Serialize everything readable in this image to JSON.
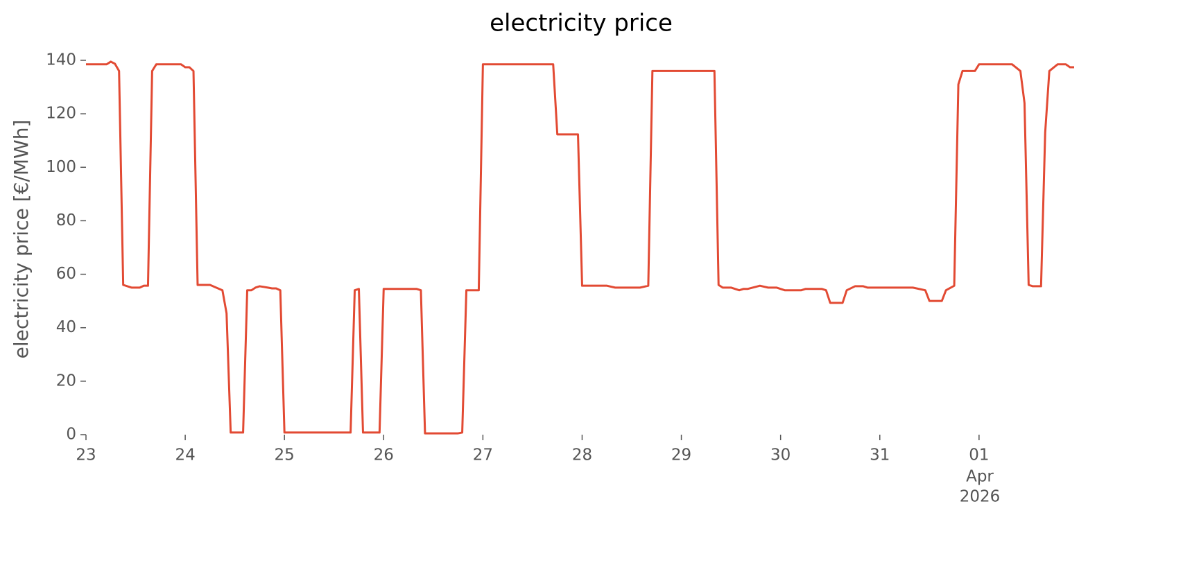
{
  "chart_data": {
    "type": "line",
    "title": "electricity price",
    "y_label": "electricity price [€/MWh]",
    "color": "#e24a33",
    "x": [
      "2026-03-23T00:00",
      "2026-03-23T05:00",
      "2026-03-23T06:00",
      "2026-03-23T07:00",
      "2026-03-23T08:00",
      "2026-03-23T09:00",
      "2026-03-23T11:00",
      "2026-03-23T13:00",
      "2026-03-23T14:00",
      "2026-03-23T15:00",
      "2026-03-23T16:00",
      "2026-03-23T17:00",
      "2026-03-23T23:00",
      "2026-03-24T00:00",
      "2026-03-24T01:00",
      "2026-03-24T02:00",
      "2026-03-24T03:00",
      "2026-03-24T06:00",
      "2026-03-24T09:00",
      "2026-03-24T10:00",
      "2026-03-24T11:00",
      "2026-03-24T14:00",
      "2026-03-24T15:00",
      "2026-03-24T16:00",
      "2026-03-24T17:00",
      "2026-03-24T18:00",
      "2026-03-24T20:00",
      "2026-03-24T21:00",
      "2026-03-24T22:00",
      "2026-03-24T23:00",
      "2026-03-25T00:00",
      "2026-03-25T06:00",
      "2026-03-25T16:00",
      "2026-03-25T17:00",
      "2026-03-25T18:00",
      "2026-03-25T19:00",
      "2026-03-25T23:00",
      "2026-03-26T00:00",
      "2026-03-26T08:00",
      "2026-03-26T09:00",
      "2026-03-26T10:00",
      "2026-03-26T18:00",
      "2026-03-26T19:00",
      "2026-03-26T20:00",
      "2026-03-26T23:00",
      "2026-03-27T00:00",
      "2026-03-27T17:00",
      "2026-03-27T18:00",
      "2026-03-27T23:00",
      "2026-03-28T00:00",
      "2026-03-28T06:00",
      "2026-03-28T08:00",
      "2026-03-28T14:00",
      "2026-03-28T16:00",
      "2026-03-28T17:00",
      "2026-03-29T08:00",
      "2026-03-29T09:00",
      "2026-03-29T10:00",
      "2026-03-29T12:00",
      "2026-03-29T14:00",
      "2026-03-29T15:00",
      "2026-03-29T16:00",
      "2026-03-29T19:00",
      "2026-03-29T21:00",
      "2026-03-29T23:00",
      "2026-03-30T01:00",
      "2026-03-30T05:00",
      "2026-03-30T06:00",
      "2026-03-30T10:00",
      "2026-03-30T11:00",
      "2026-03-30T12:00",
      "2026-03-30T15:00",
      "2026-03-30T16:00",
      "2026-03-30T18:00",
      "2026-03-30T20:00",
      "2026-03-30T21:00",
      "2026-03-31T08:00",
      "2026-03-31T11:00",
      "2026-03-31T12:00",
      "2026-03-31T15:00",
      "2026-03-31T16:00",
      "2026-03-31T18:00",
      "2026-03-31T19:00",
      "2026-03-31T20:00",
      "2026-03-31T23:00",
      "2026-04-01T00:00",
      "2026-04-01T08:00",
      "2026-04-01T10:00",
      "2026-04-01T11:00",
      "2026-04-01T12:00",
      "2026-04-01T13:00",
      "2026-04-01T15:00",
      "2026-04-01T16:00",
      "2026-04-01T17:00",
      "2026-04-01T19:00",
      "2026-04-01T21:00",
      "2026-04-01T22:00",
      "2026-04-01T23:00"
    ],
    "values": [
      138.5,
      138.5,
      139.5,
      138.7,
      136,
      56,
      55,
      55,
      55.7,
      55.7,
      136,
      138.5,
      138.5,
      137.4,
      137.4,
      136,
      56,
      56,
      54,
      45.4,
      0.8,
      0.8,
      54,
      54,
      55,
      55.5,
      55,
      54.7,
      54.7,
      54,
      0.8,
      0.8,
      0.8,
      54,
      54.5,
      0.8,
      0.8,
      54.5,
      54.5,
      54,
      0.5,
      0.5,
      0.8,
      54,
      54,
      138.5,
      138.5,
      112.3,
      112.3,
      55.7,
      55.7,
      55,
      55,
      55.7,
      136,
      136,
      56,
      55,
      55,
      54,
      54.5,
      54.5,
      55.7,
      55,
      55,
      54,
      54,
      54.5,
      54.5,
      54,
      49.3,
      49.3,
      54,
      55.5,
      55.5,
      55,
      55,
      54,
      50,
      50,
      54,
      55.7,
      131,
      136,
      136,
      138.5,
      138.5,
      136,
      124,
      56,
      55.5,
      55.5,
      113,
      136,
      138.5,
      138.5,
      137.4,
      137.4
    ],
    "xlim": [
      "2026-03-23T00:00",
      "2026-04-01T23:00"
    ],
    "xticks": [
      {
        "value": "2026-03-23T00:00",
        "label": "23"
      },
      {
        "value": "2026-03-24T00:00",
        "label": "24"
      },
      {
        "value": "2026-03-25T00:00",
        "label": "25"
      },
      {
        "value": "2026-03-26T00:00",
        "label": "26"
      },
      {
        "value": "2026-03-27T00:00",
        "label": "27"
      },
      {
        "value": "2026-03-28T00:00",
        "label": "28"
      },
      {
        "value": "2026-03-29T00:00",
        "label": "29"
      },
      {
        "value": "2026-03-30T00:00",
        "label": "30"
      },
      {
        "value": "2026-03-31T00:00",
        "label": "31"
      },
      {
        "value": "2026-04-01T00:00",
        "label": "01"
      }
    ],
    "x_month_label": "Apr",
    "x_year_label": "2026",
    "ylim": [
      0,
      140
    ],
    "yticks": [
      0,
      20,
      40,
      60,
      80,
      100,
      120,
      140
    ],
    "grid": false
  }
}
